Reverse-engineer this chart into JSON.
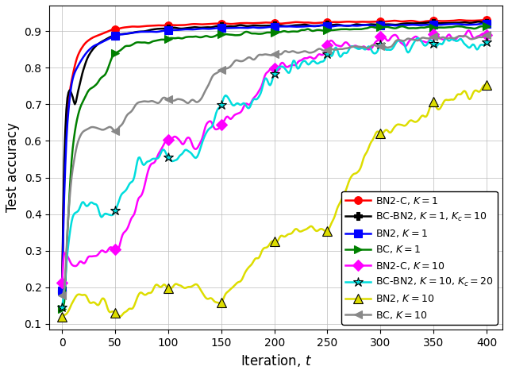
{
  "xlabel": "Iteration, $t$",
  "ylabel": "Test accuracy",
  "xlim": [
    -12,
    415
  ],
  "ylim": [
    0.085,
    0.97
  ],
  "xticks": [
    0,
    50,
    100,
    150,
    200,
    250,
    300,
    350,
    400
  ],
  "yticks": [
    0.1,
    0.2,
    0.3,
    0.4,
    0.5,
    0.6,
    0.7,
    0.8,
    0.9
  ],
  "legend_loc": "lower right",
  "legend_fontsize": 9,
  "figsize": [
    6.4,
    4.71
  ],
  "dpi": 100
}
